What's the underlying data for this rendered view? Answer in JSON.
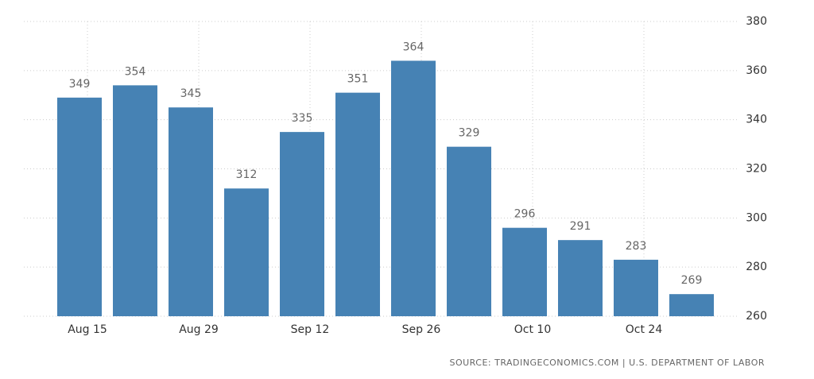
{
  "chart_data": {
    "type": "bar",
    "categories": [
      "Aug 15",
      null,
      "Aug 29",
      null,
      "Sep 12",
      null,
      "Sep 26",
      null,
      "Oct 10",
      null,
      "Oct 24",
      null
    ],
    "values": [
      349,
      354,
      345,
      312,
      335,
      351,
      364,
      329,
      296,
      291,
      283,
      269
    ],
    "color": "#4682b4",
    "ylim": [
      260,
      380
    ],
    "yticks": [
      260,
      280,
      300,
      320,
      340,
      360,
      380
    ],
    "grid": true,
    "source": "SOURCE: TRADINGECONOMICS.COM | U.S. DEPARTMENT OF LABOR"
  }
}
